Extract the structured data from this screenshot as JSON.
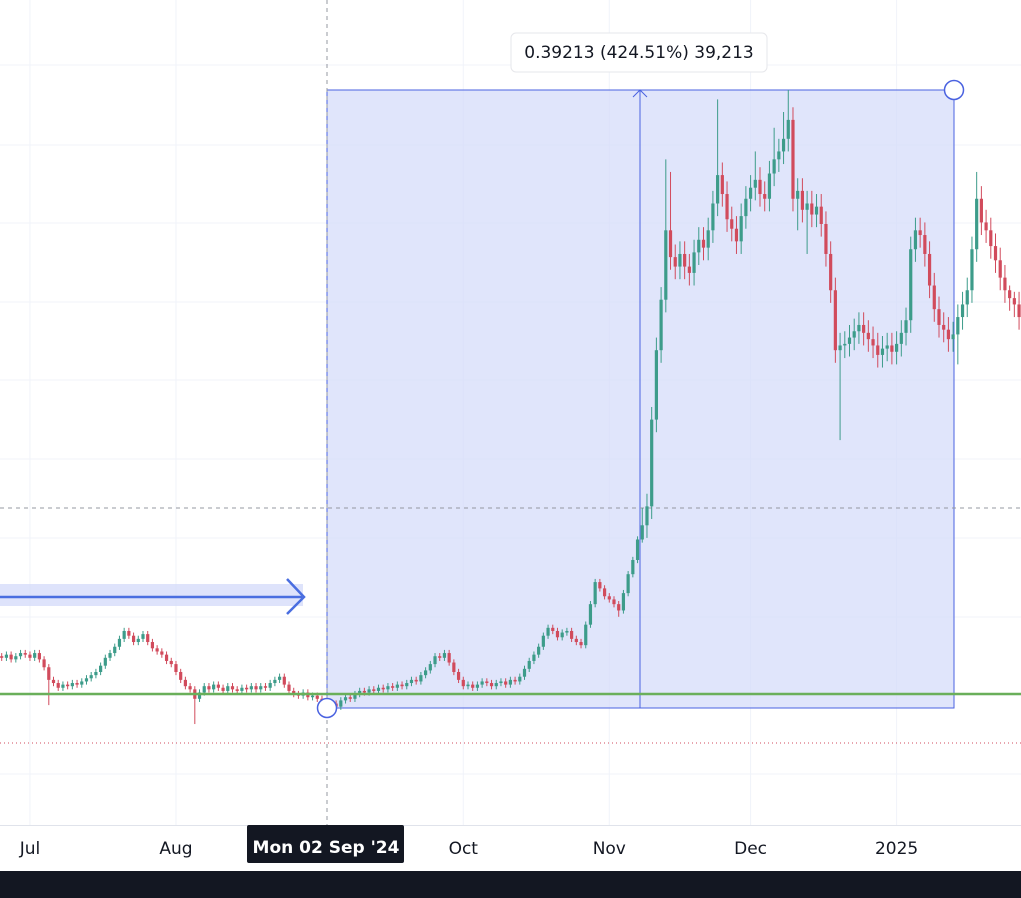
{
  "chart_data": {
    "type": "candlestick",
    "categories": [
      null,
      null,
      null,
      null,
      null,
      null,
      "Jul",
      null,
      null,
      null,
      null,
      null,
      null,
      null,
      null,
      null,
      null,
      null,
      null,
      null,
      null,
      null,
      null,
      null,
      null,
      null,
      null,
      null,
      null,
      null,
      null,
      null,
      null,
      null,
      null,
      null,
      null,
      "Aug",
      null,
      null,
      null,
      null,
      null,
      null,
      null,
      null,
      null,
      null,
      null,
      null,
      null,
      null,
      null,
      null,
      null,
      null,
      null,
      null,
      null,
      null,
      null,
      null,
      null,
      null,
      null,
      null,
      null,
      null,
      null,
      null,
      null,
      null,
      null,
      null,
      null,
      null,
      null,
      null,
      null,
      null,
      null,
      null,
      null,
      null,
      null,
      null,
      null,
      null,
      null,
      null,
      null,
      null,
      null,
      null,
      null,
      null,
      null,
      null,
      "Oct",
      null,
      null,
      null,
      null,
      null,
      null,
      null,
      null,
      null,
      null,
      null,
      null,
      null,
      null,
      null,
      null,
      null,
      null,
      null,
      null,
      null,
      null,
      null,
      null,
      null,
      null,
      null,
      null,
      null,
      null,
      "Nov",
      null,
      null,
      null,
      null,
      null,
      null,
      null,
      null,
      null,
      null,
      null,
      null,
      null,
      null,
      null,
      null,
      null,
      null,
      null,
      null,
      null,
      null,
      null,
      null,
      null,
      null,
      null,
      null,
      null,
      "Dec",
      null,
      null,
      null,
      null,
      null,
      null,
      null,
      null,
      null,
      null,
      null,
      null,
      null,
      null,
      null,
      null,
      null,
      null,
      null,
      null,
      null,
      null,
      null,
      null,
      null,
      null,
      null,
      null,
      null,
      null,
      "2025",
      null,
      null,
      null,
      null,
      null,
      null,
      null,
      null,
      null,
      null,
      null,
      null,
      null,
      null,
      null,
      null,
      null,
      null,
      null,
      null,
      null,
      null,
      null,
      null,
      null,
      null,
      null
    ],
    "open": [
      0.125,
      0.124,
      0.126,
      0.123,
      0.125,
      0.127,
      0.126,
      0.124,
      0.127,
      0.123,
      0.118,
      0.11,
      0.108,
      0.105,
      0.107,
      0.106,
      0.108,
      0.107,
      0.109,
      0.111,
      0.113,
      0.115,
      0.119,
      0.124,
      0.127,
      0.131,
      0.136,
      0.141,
      0.138,
      0.134,
      0.136,
      0.139,
      0.134,
      0.13,
      0.128,
      0.126,
      0.122,
      0.12,
      0.115,
      0.11,
      0.106,
      0.104,
      0.098,
      0.102,
      0.106,
      0.104,
      0.107,
      0.105,
      0.103,
      0.106,
      0.104,
      0.103,
      0.105,
      0.104,
      0.106,
      0.104,
      0.106,
      0.105,
      0.108,
      0.11,
      0.112,
      0.107,
      0.103,
      0.101,
      0.1,
      0.102,
      0.099,
      0.1,
      0.098,
      0.096,
      0.094,
      0.095,
      0.093,
      0.097,
      0.099,
      0.098,
      0.101,
      0.103,
      0.102,
      0.104,
      0.103,
      0.105,
      0.104,
      0.106,
      0.105,
      0.107,
      0.106,
      0.108,
      0.11,
      0.109,
      0.113,
      0.116,
      0.12,
      0.125,
      0.124,
      0.127,
      0.121,
      0.115,
      0.11,
      0.106,
      0.107,
      0.105,
      0.107,
      0.109,
      0.108,
      0.106,
      0.108,
      0.109,
      0.107,
      0.11,
      0.109,
      0.112,
      0.117,
      0.122,
      0.126,
      0.131,
      0.138,
      0.143,
      0.141,
      0.137,
      0.14,
      0.141,
      0.136,
      0.134,
      0.132,
      0.145,
      0.158,
      0.172,
      0.168,
      0.163,
      0.161,
      0.158,
      0.154,
      0.165,
      0.177,
      0.186,
      0.199,
      0.208,
      0.22,
      0.275,
      0.319,
      0.351,
      0.395,
      0.378,
      0.372,
      0.38,
      0.372,
      0.368,
      0.381,
      0.389,
      0.384,
      0.395,
      0.412,
      0.43,
      0.418,
      0.402,
      0.396,
      0.388,
      0.404,
      0.415,
      0.422,
      0.427,
      0.418,
      0.415,
      0.431,
      0.44,
      0.445,
      0.453,
      0.465,
      0.415,
      0.42,
      0.408,
      0.412,
      0.405,
      0.41,
      0.399,
      0.38,
      0.357,
      0.319,
      0.322,
      0.323,
      0.327,
      0.331,
      0.335,
      0.33,
      0.326,
      0.322,
      0.316,
      0.32,
      0.322,
      0.318,
      0.323,
      0.33,
      0.338,
      0.383,
      0.395,
      0.392,
      0.38,
      0.36,
      0.345,
      0.335,
      0.332,
      0.326,
      0.329,
      0.34,
      0.348,
      0.357,
      0.383,
      0.415,
      0.4,
      0.395,
      0.385,
      0.376,
      0.365,
      0.357,
      0.352,
      0.348,
      0.34
    ],
    "high": [
      0.127,
      0.128,
      0.128,
      0.127,
      0.129,
      0.129,
      0.128,
      0.129,
      0.129,
      0.125,
      0.12,
      0.112,
      0.11,
      0.109,
      0.109,
      0.11,
      0.11,
      0.111,
      0.113,
      0.115,
      0.117,
      0.121,
      0.126,
      0.129,
      0.133,
      0.138,
      0.143,
      0.143,
      0.14,
      0.138,
      0.141,
      0.141,
      0.136,
      0.132,
      0.13,
      0.128,
      0.124,
      0.122,
      0.117,
      0.112,
      0.108,
      0.106,
      0.104,
      0.108,
      0.108,
      0.109,
      0.109,
      0.107,
      0.108,
      0.108,
      0.106,
      0.107,
      0.107,
      0.108,
      0.108,
      0.108,
      0.108,
      0.11,
      0.112,
      0.114,
      0.114,
      0.109,
      0.105,
      0.103,
      0.104,
      0.104,
      0.102,
      0.102,
      0.1,
      0.098,
      0.097,
      0.097,
      0.099,
      0.101,
      0.101,
      0.103,
      0.105,
      0.105,
      0.106,
      0.106,
      0.107,
      0.107,
      0.108,
      0.108,
      0.109,
      0.109,
      0.11,
      0.112,
      0.112,
      0.115,
      0.118,
      0.122,
      0.127,
      0.127,
      0.129,
      0.129,
      0.123,
      0.117,
      0.112,
      0.109,
      0.109,
      0.109,
      0.111,
      0.111,
      0.11,
      0.11,
      0.111,
      0.111,
      0.112,
      0.112,
      0.114,
      0.119,
      0.124,
      0.128,
      0.133,
      0.14,
      0.145,
      0.145,
      0.143,
      0.142,
      0.143,
      0.143,
      0.138,
      0.136,
      0.147,
      0.16,
      0.174,
      0.174,
      0.17,
      0.165,
      0.163,
      0.16,
      0.167,
      0.179,
      0.188,
      0.201,
      0.219,
      0.228,
      0.283,
      0.327,
      0.359,
      0.44,
      0.432,
      0.386,
      0.388,
      0.388,
      0.38,
      0.389,
      0.397,
      0.397,
      0.403,
      0.42,
      0.478,
      0.438,
      0.426,
      0.41,
      0.404,
      0.412,
      0.423,
      0.43,
      0.445,
      0.435,
      0.426,
      0.439,
      0.46,
      0.453,
      0.47,
      0.484,
      0.473,
      0.428,
      0.428,
      0.42,
      0.42,
      0.418,
      0.418,
      0.407,
      0.388,
      0.365,
      0.33,
      0.331,
      0.335,
      0.339,
      0.343,
      0.343,
      0.338,
      0.334,
      0.33,
      0.328,
      0.33,
      0.33,
      0.331,
      0.338,
      0.346,
      0.391,
      0.403,
      0.403,
      0.4,
      0.388,
      0.368,
      0.353,
      0.343,
      0.34,
      0.337,
      0.348,
      0.356,
      0.365,
      0.391,
      0.432,
      0.423,
      0.408,
      0.403,
      0.393,
      0.384,
      0.373,
      0.36,
      0.356,
      0.356,
      0.348
    ],
    "low": [
      0.122,
      0.122,
      0.121,
      0.121,
      0.123,
      0.124,
      0.122,
      0.122,
      0.121,
      0.116,
      0.094,
      0.106,
      0.103,
      0.103,
      0.104,
      0.104,
      0.105,
      0.105,
      0.107,
      0.109,
      0.111,
      0.113,
      0.117,
      0.122,
      0.125,
      0.129,
      0.134,
      0.136,
      0.132,
      0.132,
      0.134,
      0.132,
      0.128,
      0.126,
      0.124,
      0.12,
      0.118,
      0.113,
      0.108,
      0.104,
      0.102,
      0.082,
      0.096,
      0.1,
      0.102,
      0.102,
      0.103,
      0.101,
      0.101,
      0.102,
      0.101,
      0.101,
      0.102,
      0.102,
      0.102,
      0.102,
      0.103,
      0.103,
      0.106,
      0.108,
      0.105,
      0.101,
      0.099,
      0.098,
      0.098,
      0.097,
      0.097,
      0.096,
      0.094,
      0.092,
      0.092,
      0.091,
      0.091,
      0.095,
      0.096,
      0.096,
      0.099,
      0.1,
      0.1,
      0.101,
      0.101,
      0.102,
      0.102,
      0.103,
      0.103,
      0.104,
      0.104,
      0.106,
      0.107,
      0.107,
      0.111,
      0.114,
      0.118,
      0.122,
      0.122,
      0.119,
      0.113,
      0.108,
      0.104,
      0.104,
      0.103,
      0.103,
      0.105,
      0.106,
      0.104,
      0.104,
      0.106,
      0.105,
      0.105,
      0.107,
      0.107,
      0.11,
      0.115,
      0.12,
      0.124,
      0.129,
      0.136,
      0.139,
      0.135,
      0.135,
      0.138,
      0.134,
      0.132,
      0.13,
      0.13,
      0.143,
      0.156,
      0.166,
      0.161,
      0.159,
      0.156,
      0.15,
      0.152,
      0.163,
      0.175,
      0.184,
      0.197,
      0.2,
      0.212,
      0.267,
      0.311,
      0.343,
      0.37,
      0.364,
      0.364,
      0.364,
      0.36,
      0.36,
      0.373,
      0.376,
      0.376,
      0.387,
      0.404,
      0.41,
      0.394,
      0.388,
      0.38,
      0.38,
      0.396,
      0.407,
      0.414,
      0.41,
      0.407,
      0.407,
      0.423,
      0.432,
      0.437,
      0.445,
      0.407,
      0.395,
      0.4,
      0.38,
      0.397,
      0.397,
      0.391,
      0.372,
      0.349,
      0.311,
      0.262,
      0.314,
      0.315,
      0.319,
      0.323,
      0.322,
      0.318,
      0.314,
      0.308,
      0.308,
      0.312,
      0.31,
      0.31,
      0.315,
      0.322,
      0.33,
      0.375,
      0.384,
      0.372,
      0.352,
      0.337,
      0.327,
      0.324,
      0.318,
      0.318,
      0.31,
      0.332,
      0.34,
      0.349,
      0.375,
      0.392,
      0.387,
      0.377,
      0.368,
      0.357,
      0.349,
      0.344,
      0.34,
      0.332,
      0.3
    ],
    "close": [
      0.124,
      0.126,
      0.123,
      0.125,
      0.127,
      0.126,
      0.124,
      0.127,
      0.123,
      0.118,
      0.11,
      0.108,
      0.105,
      0.107,
      0.106,
      0.108,
      0.107,
      0.109,
      0.111,
      0.113,
      0.115,
      0.119,
      0.124,
      0.127,
      0.131,
      0.136,
      0.141,
      0.138,
      0.134,
      0.136,
      0.139,
      0.134,
      0.13,
      0.128,
      0.126,
      0.122,
      0.12,
      0.115,
      0.11,
      0.106,
      0.104,
      0.098,
      0.102,
      0.106,
      0.104,
      0.107,
      0.105,
      0.103,
      0.106,
      0.104,
      0.103,
      0.105,
      0.104,
      0.106,
      0.104,
      0.106,
      0.105,
      0.108,
      0.11,
      0.112,
      0.107,
      0.103,
      0.101,
      0.1,
      0.102,
      0.099,
      0.1,
      0.098,
      0.096,
      0.094,
      0.095,
      0.093,
      0.097,
      0.099,
      0.098,
      0.101,
      0.103,
      0.102,
      0.104,
      0.103,
      0.105,
      0.104,
      0.106,
      0.105,
      0.107,
      0.106,
      0.108,
      0.11,
      0.109,
      0.113,
      0.116,
      0.12,
      0.125,
      0.124,
      0.127,
      0.121,
      0.115,
      0.11,
      0.106,
      0.107,
      0.105,
      0.107,
      0.109,
      0.108,
      0.106,
      0.108,
      0.109,
      0.107,
      0.11,
      0.109,
      0.112,
      0.117,
      0.122,
      0.126,
      0.131,
      0.138,
      0.143,
      0.141,
      0.137,
      0.14,
      0.141,
      0.136,
      0.134,
      0.132,
      0.145,
      0.158,
      0.172,
      0.168,
      0.163,
      0.161,
      0.158,
      0.154,
      0.165,
      0.177,
      0.186,
      0.199,
      0.208,
      0.22,
      0.275,
      0.319,
      0.351,
      0.395,
      0.378,
      0.372,
      0.38,
      0.372,
      0.368,
      0.381,
      0.389,
      0.384,
      0.395,
      0.412,
      0.43,
      0.418,
      0.402,
      0.396,
      0.388,
      0.404,
      0.415,
      0.422,
      0.427,
      0.418,
      0.415,
      0.431,
      0.44,
      0.445,
      0.453,
      0.465,
      0.415,
      0.42,
      0.408,
      0.412,
      0.405,
      0.41,
      0.399,
      0.38,
      0.357,
      0.319,
      0.322,
      0.323,
      0.327,
      0.331,
      0.335,
      0.33,
      0.326,
      0.322,
      0.316,
      0.32,
      0.322,
      0.318,
      0.323,
      0.33,
      0.338,
      0.383,
      0.395,
      0.392,
      0.38,
      0.36,
      0.345,
      0.335,
      0.332,
      0.326,
      0.329,
      0.34,
      0.348,
      0.357,
      0.383,
      0.415,
      0.4,
      0.395,
      0.385,
      0.376,
      0.365,
      0.357,
      0.352,
      0.348,
      0.34,
      0.332
    ],
    "up_color": "#3d9c8a",
    "down_color": "#d14b5c",
    "ylim": [
      0.018,
      0.541
    ],
    "crosshair_label": "Mon 02 Sep '24",
    "measure_label": "0.39213 (424.51%) 39,213"
  }
}
